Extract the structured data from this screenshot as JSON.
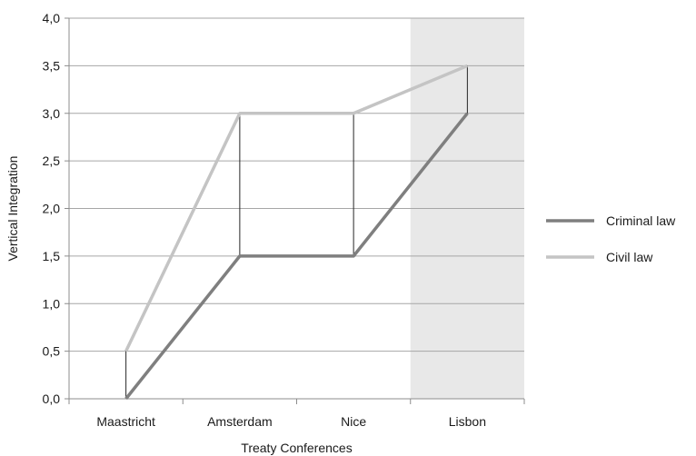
{
  "chart_data": {
    "type": "line",
    "title": "",
    "xlabel": "Treaty Conferences",
    "ylabel": "Vertical Integration",
    "categories": [
      "Maastricht",
      "Amsterdam",
      "Nice",
      "Lisbon"
    ],
    "ylim": [
      0,
      4
    ],
    "y_ticks": [
      "0,0",
      "0,5",
      "1,0",
      "1,5",
      "2,0",
      "2,5",
      "3,0",
      "3,5",
      "4,0"
    ],
    "y_tick_values": [
      0,
      0.5,
      1,
      1.5,
      2,
      2.5,
      3,
      3.5,
      4
    ],
    "grid": "horizontal",
    "legend_position": "right",
    "highlighted_category": "Lisbon",
    "highlight_color": "#e8e8e8",
    "series": [
      {
        "name": "Criminal law",
        "values": [
          0,
          1.5,
          1.5,
          3.0
        ],
        "color": "#7f7f7f"
      },
      {
        "name": "Civil law",
        "values": [
          0.5,
          3.0,
          3.0,
          3.5
        ],
        "color": "#c4c4c4"
      }
    ],
    "connector_color": "#262626"
  }
}
